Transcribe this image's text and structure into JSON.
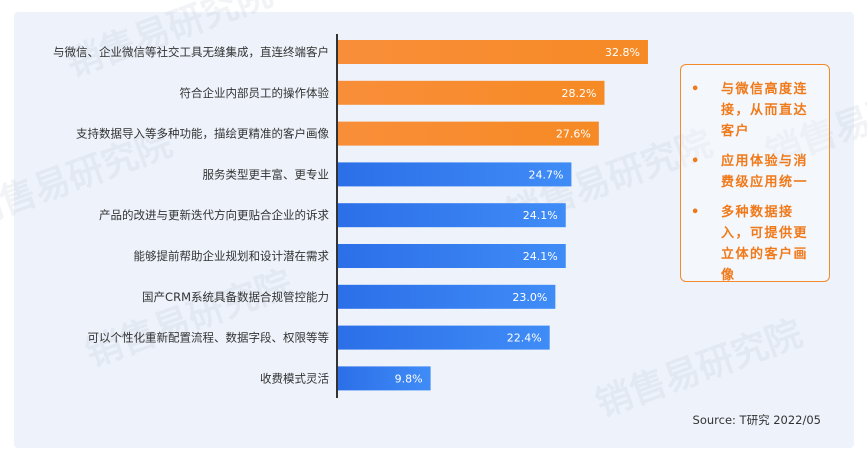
{
  "chart_data": {
    "type": "bar",
    "orientation": "horizontal",
    "categories": [
      "与微信、企业微信等社交工具无缝集成，直连终端客户",
      "符合企业内部员工的操作体验",
      "支持数据导入等多种功能，描绘更精准的客户画像",
      "服务类型更丰富、更专业",
      "产品的改进与更新迭代方向更贴合企业的诉求",
      "能够提前帮助企业规划和设计潜在需求",
      "国产CRM系统具备数据合规管控能力",
      "可以个性化重新配置流程、数据字段、权限等等",
      "收费模式灵活"
    ],
    "values": [
      32.8,
      28.2,
      27.6,
      24.7,
      24.1,
      24.1,
      23.0,
      22.4,
      9.8
    ],
    "value_labels": [
      "32.8%",
      "28.2%",
      "27.6%",
      "24.7%",
      "24.1%",
      "24.1%",
      "23.0%",
      "22.4%",
      "9.8%"
    ],
    "highlighted_count": 3,
    "colors": {
      "highlight": "#f7902f",
      "normal": "#2f7bf0"
    },
    "xlim": [
      0,
      35
    ],
    "grid": false
  },
  "notes": [
    "与微信高度连接，从而直达客户",
    "应用体验与消费级应用统一",
    "多种数据接入，可提供更立体的客户画像"
  ],
  "note_bullet": "•",
  "source": "Source: T研究 2022/05",
  "watermark": "销售易研究院"
}
